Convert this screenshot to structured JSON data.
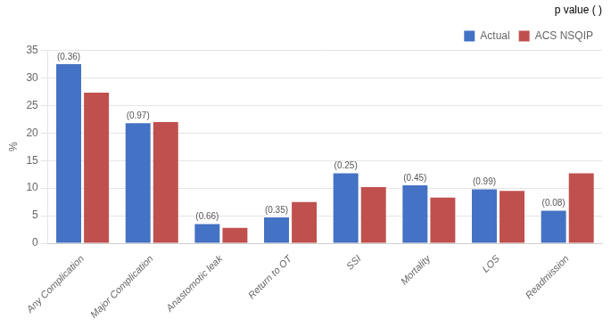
{
  "chart_data": {
    "type": "bar",
    "categories": [
      "Any Complication",
      "Major Complication",
      "Anastomotic leak",
      "Return to OT",
      "SSI",
      "Mortality",
      "LOS",
      "Readmission"
    ],
    "series": [
      {
        "name": "Actual",
        "color": "#4472C4",
        "values": [
          32.5,
          21.8,
          3.5,
          4.7,
          12.7,
          10.5,
          9.8,
          5.9
        ],
        "annotations": [
          "(0.36)",
          "(0.97)",
          "(0.66)",
          "(0.35)",
          "(0.25)",
          "(0.45)",
          "(0.99)",
          "(0.08)"
        ]
      },
      {
        "name": "ACS NSQIP",
        "color": "#C0504D",
        "values": [
          27.3,
          22.0,
          2.8,
          7.5,
          10.2,
          8.3,
          9.5,
          12.7
        ]
      }
    ],
    "ylabel": "%",
    "annotation": "p value ( )",
    "ylim": [
      0,
      35
    ],
    "yticks": [
      0,
      5,
      10,
      15,
      20,
      25,
      30,
      35
    ],
    "grid": true,
    "legend": "upper right"
  }
}
